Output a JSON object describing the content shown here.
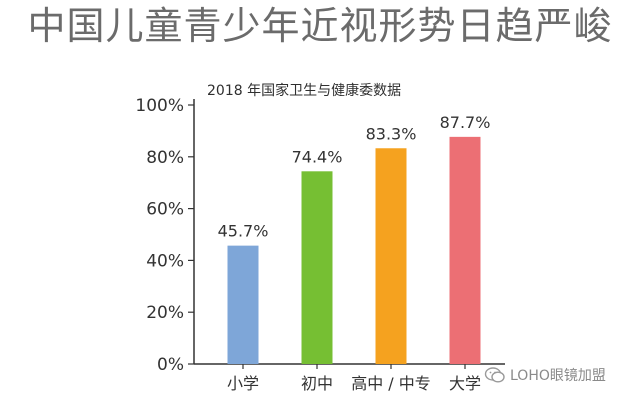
{
  "header": {
    "title": "中国儿童青少年近视形势日趋严峻",
    "source": "2018 年国家卫生与健康委数据"
  },
  "watermark": {
    "text": "LOHO眼镜加盟",
    "icon": "wechat-icon"
  },
  "chart_data": {
    "type": "bar",
    "categories": [
      "小学",
      "初中",
      "高中 / 中专",
      "大学"
    ],
    "values": [
      45.7,
      74.4,
      83.3,
      87.7
    ],
    "value_labels": [
      "45.7%",
      "74.4%",
      "83.3%",
      "87.7%"
    ],
    "y_ticks": [
      0,
      20,
      40,
      60,
      80,
      100
    ],
    "y_tick_labels": [
      "0%",
      "20%",
      "40%",
      "60%",
      "80%",
      "100%"
    ],
    "ylim": [
      0,
      100
    ],
    "colors": [
      "#7ea6d8",
      "#76bf33",
      "#f5a21f",
      "#ec6f74"
    ],
    "grid": false,
    "title": "2018 年国家卫生与健康委数据",
    "xlabel": "",
    "ylabel": ""
  }
}
